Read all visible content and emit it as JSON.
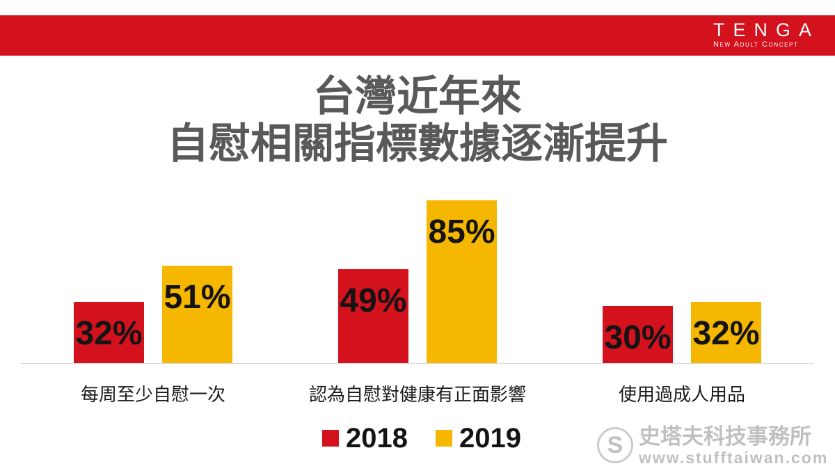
{
  "header": {
    "brand": "TENGA",
    "tagline": "New Adult Concept"
  },
  "colors": {
    "banner": "#D3121E",
    "title": "#595959",
    "background": "#FFFFFF"
  },
  "chart_data": {
    "type": "bar",
    "title": [
      "台灣近年來",
      "自慰相關指標數據逐漸提升"
    ],
    "categories": [
      "每周至少自慰一次",
      "認為自慰對健康有正面影響",
      "使用過成人用品"
    ],
    "series": [
      {
        "name": "2018",
        "values": [
          32,
          49,
          30
        ],
        "color": "#D3121E"
      },
      {
        "name": "2019",
        "values": [
          51,
          85,
          32
        ],
        "color": "#F5B700"
      }
    ],
    "unit": "%",
    "ylim": [
      0,
      100
    ],
    "data_labels": "inside-end",
    "legend": "bottom",
    "grid": false
  },
  "watermark": {
    "logo_letter": "S",
    "name": "史塔夫科技事務所",
    "url": "www.stufftaiwan.com"
  }
}
